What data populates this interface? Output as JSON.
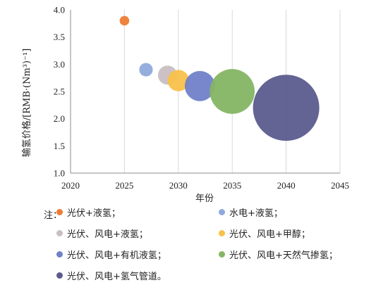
{
  "chart_data": {
    "type": "scatter",
    "subtype": "bubble",
    "xlabel": "年份",
    "ylabel": "输氢价格/[RMB·(Nm³)⁻¹]",
    "xlim": [
      2020,
      2045
    ],
    "ylim": [
      1.0,
      4.0
    ],
    "xticks": [
      "2020",
      "2025",
      "2030",
      "2035",
      "2040",
      "2045"
    ],
    "yticks": [
      "1.0",
      "1.5",
      "2.0",
      "2.5",
      "3.0",
      "3.5",
      "4.0"
    ],
    "grid": "vertical",
    "legend_prefix": "注：",
    "legend_position": "bottom",
    "series": [
      {
        "name": "光伏+液氢；",
        "color": "#ed7d31",
        "x": 2025,
        "y": 3.8,
        "size": 1
      },
      {
        "name": "水电+液氢；",
        "color": "#8faadc",
        "x": 2027,
        "y": 2.9,
        "size": 2
      },
      {
        "name": "光伏、风电+液氢；",
        "color": "#c9bfc3",
        "x": 2029,
        "y": 2.8,
        "size": 4
      },
      {
        "name": "光伏、风电+甲醇；",
        "color": "#f8c14a",
        "x": 2030,
        "y": 2.7,
        "size": 5
      },
      {
        "name": "光伏、风电+有机液氢；",
        "color": "#7181c8",
        "x": 2032,
        "y": 2.6,
        "size": 10
      },
      {
        "name": "光伏、风电+天然气掺氢；",
        "color": "#85b563",
        "x": 2035,
        "y": 2.5,
        "size": 22
      },
      {
        "name": "光伏、风电+氢气管道。",
        "color": "#5b5b8e",
        "x": 2040,
        "y": 2.2,
        "size": 48
      }
    ]
  }
}
